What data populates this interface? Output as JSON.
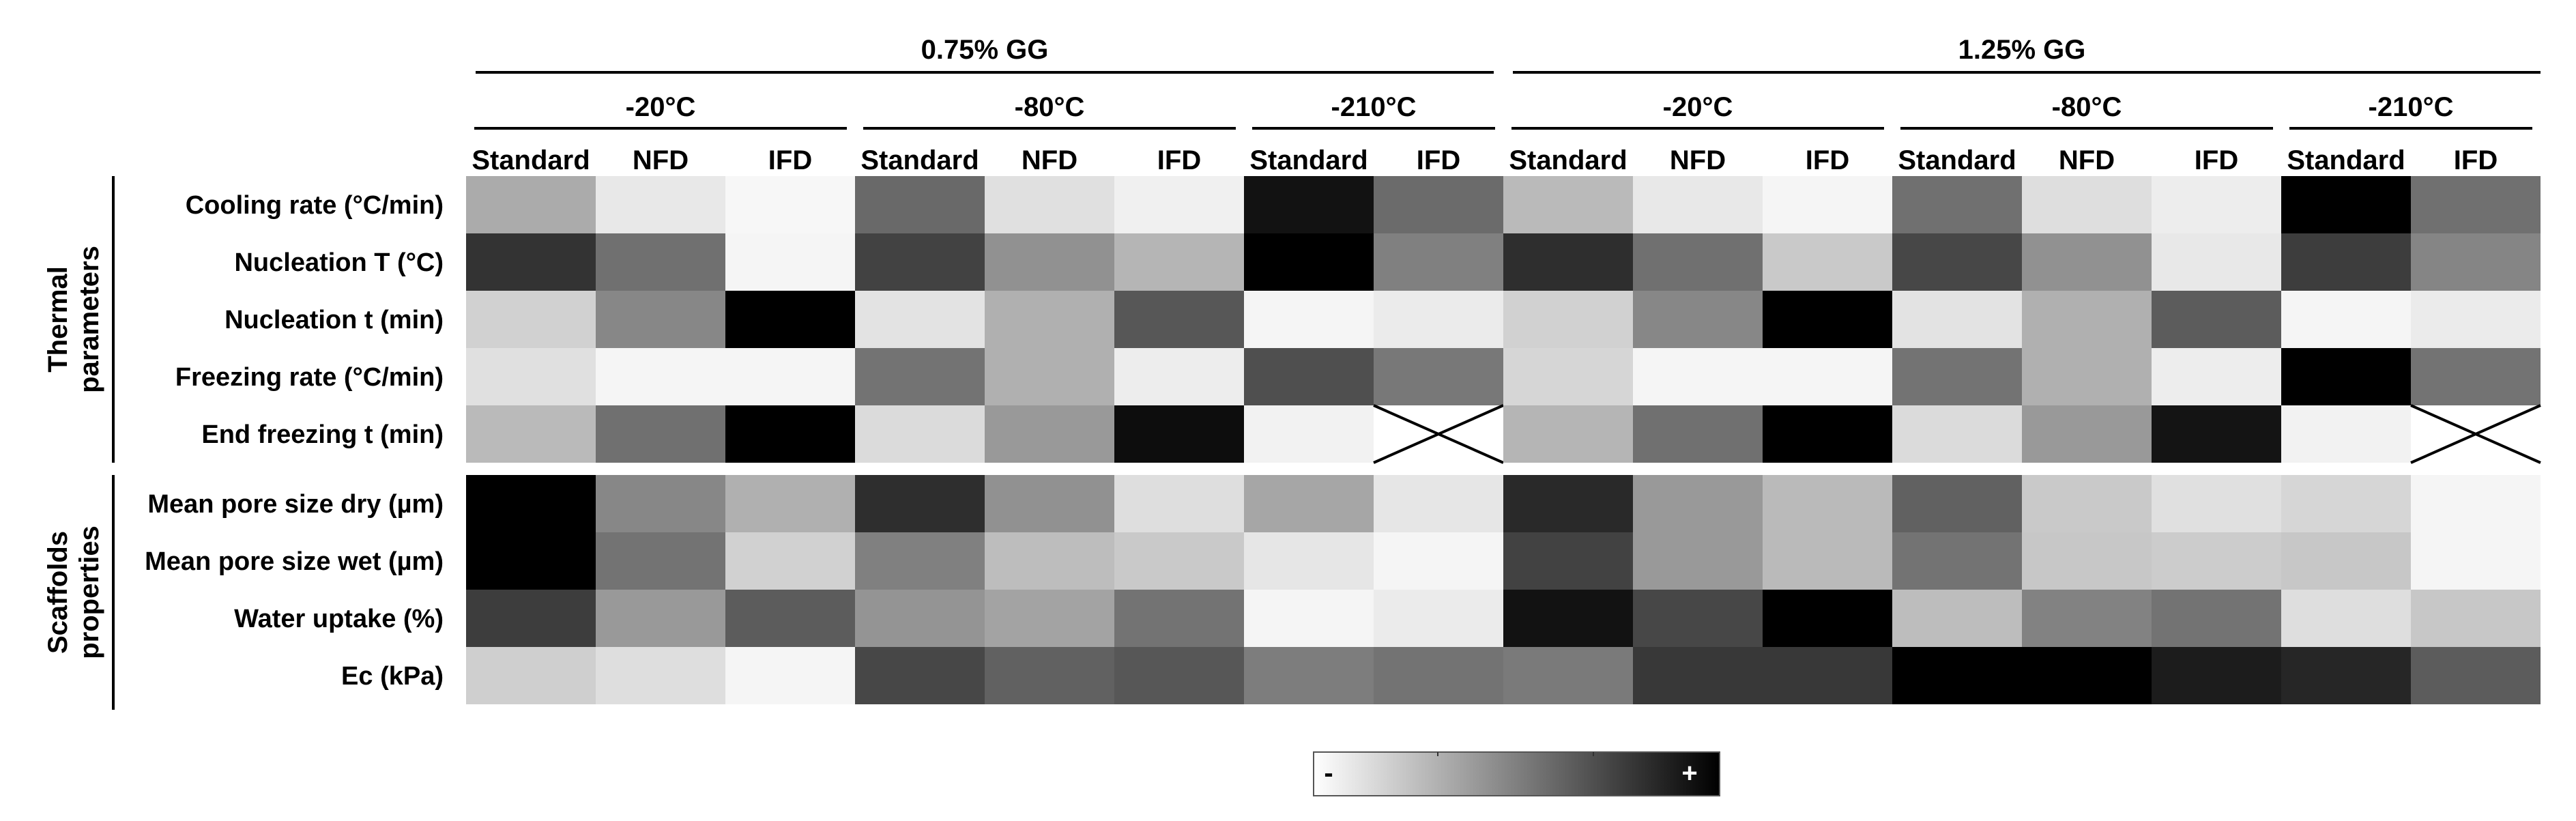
{
  "chart_data": {
    "type": "heatmap",
    "group_labels": [
      "0.75% GG",
      "1.25% GG"
    ],
    "temperature_labels": [
      "-20°C",
      "-80°C",
      "-210°C",
      "-20°C",
      "-80°C",
      "-210°C"
    ],
    "method_labels": [
      "Standard",
      "NFD",
      "IFD",
      "Standard",
      "NFD",
      "IFD",
      "Standard",
      "IFD",
      "Standard",
      "NFD",
      "IFD",
      "Standard",
      "NFD",
      "IFD",
      "Standard",
      "IFD"
    ],
    "row_groups": [
      {
        "name": "Thermal parameters",
        "line1": "Thermal",
        "line2": "parameters"
      },
      {
        "name": "Scaffolds properties",
        "line1": "Scaffolds",
        "line2": "properties"
      }
    ],
    "rows": [
      "Cooling rate (°C/min)",
      "Nucleation T (°C)",
      "Nucleation t (min)",
      "Freezing rate (°C/min)",
      "End freezing t (min)",
      "Mean pore size dry (µm)",
      "Mean pore size wet (µm)",
      "Water uptake (%)",
      "Ec (kPa)"
    ],
    "values": [
      [
        0.33,
        0.09,
        0.03,
        0.59,
        0.12,
        0.06,
        0.93,
        0.58,
        0.27,
        0.09,
        0.04,
        0.56,
        0.13,
        0.07,
        1.0,
        0.56
      ],
      [
        0.8,
        0.56,
        0.04,
        0.74,
        0.43,
        0.29,
        1.0,
        0.5,
        0.82,
        0.56,
        0.21,
        0.72,
        0.43,
        0.09,
        0.76,
        0.48
      ],
      [
        0.18,
        0.47,
        1.0,
        0.11,
        0.31,
        0.66,
        0.04,
        0.08,
        0.18,
        0.47,
        1.0,
        0.11,
        0.31,
        0.64,
        0.04,
        0.08
      ],
      [
        0.12,
        0.04,
        0.04,
        0.55,
        0.31,
        0.07,
        0.69,
        0.53,
        0.16,
        0.04,
        0.04,
        0.55,
        0.31,
        0.07,
        1.0,
        0.55
      ],
      [
        0.27,
        0.56,
        1.0,
        0.14,
        0.4,
        0.95,
        0.05,
        null,
        0.29,
        0.56,
        1.0,
        0.14,
        0.4,
        0.92,
        0.05,
        null
      ],
      [
        1.0,
        0.47,
        0.31,
        0.82,
        0.43,
        0.13,
        0.35,
        0.1,
        0.84,
        0.4,
        0.27,
        0.62,
        0.21,
        0.12,
        0.16,
        0.04
      ],
      [
        1.0,
        0.55,
        0.18,
        0.5,
        0.26,
        0.21,
        0.1,
        0.04,
        0.74,
        0.4,
        0.27,
        0.55,
        0.22,
        0.2,
        0.22,
        0.04
      ],
      [
        0.76,
        0.4,
        0.64,
        0.42,
        0.36,
        0.55,
        0.04,
        0.08,
        0.93,
        0.72,
        1.0,
        0.26,
        0.49,
        0.55,
        0.13,
        0.22
      ],
      [
        0.19,
        0.13,
        0.04,
        0.72,
        0.62,
        0.66,
        0.51,
        0.55,
        0.52,
        0.78,
        0.78,
        1.0,
        1.0,
        0.89,
        0.85,
        0.64
      ]
    ],
    "not_applicable": [
      [
        4,
        7
      ],
      [
        4,
        15
      ]
    ],
    "colorbar": {
      "min_label": "-",
      "max_label": "+",
      "min_color": "#ffffff",
      "max_color": "#000000"
    },
    "grid": false
  }
}
